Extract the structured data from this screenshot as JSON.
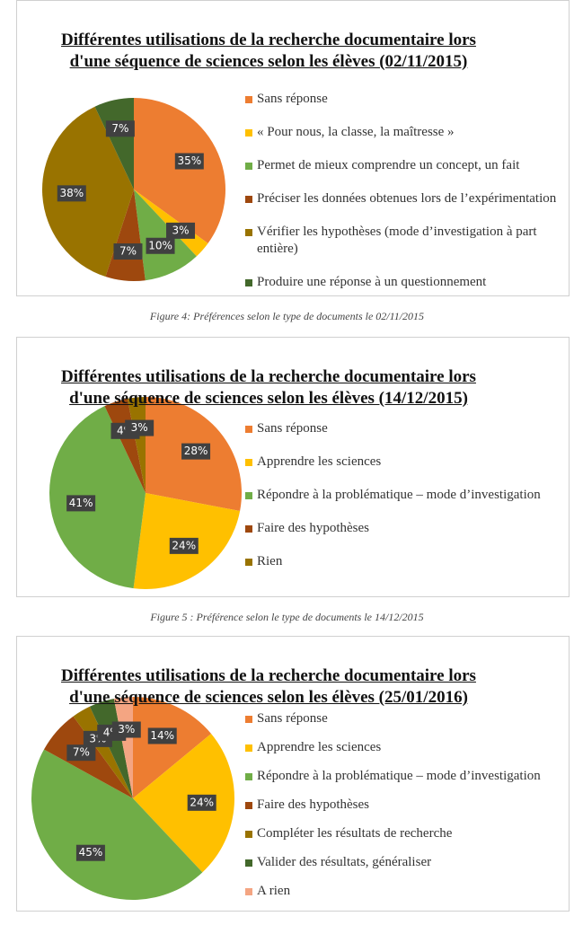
{
  "chart_data": [
    {
      "type": "pie",
      "title": "Différentes utilisations de la recherche documentaire lors d'une séquence de sciences selon les élèves (02/11/2015)",
      "categories": [
        "Sans réponse",
        "« Pour nous, la classe, la maîtresse »",
        "Permet de mieux comprendre un concept, un fait",
        "Préciser les données obtenues lors de l’expérimentation",
        "Vérifier les hypothèses (mode d’investigation à part entière)",
        "Produire une réponse à un questionnement"
      ],
      "values": [
        35,
        3,
        10,
        7,
        38,
        7
      ],
      "value_labels": [
        "35%",
        "3%",
        "10%",
        "7%",
        "38%",
        "7%"
      ],
      "colors": [
        "#ED7D31",
        "#FFC000",
        "#70AD47",
        "#9E480E",
        "#997300",
        "#43682B"
      ]
    },
    {
      "type": "pie",
      "title": "Différentes utilisations de la recherche documentaire lors d'une séquence de sciences selon les élèves (14/12/2015)",
      "categories": [
        "Sans réponse",
        "Apprendre les sciences",
        "Répondre à la problématique – mode d’investigation",
        "Faire des hypothèses",
        "Rien"
      ],
      "values": [
        28,
        24,
        41,
        4,
        3
      ],
      "value_labels": [
        "28%",
        "24%",
        "41%",
        "4%",
        "3%"
      ],
      "colors": [
        "#ED7D31",
        "#FFC000",
        "#70AD47",
        "#9E480E",
        "#997300"
      ]
    },
    {
      "type": "pie",
      "title": "Différentes utilisations de la recherche documentaire lors d'une séquence de sciences selon les élèves (25/01/2016)",
      "categories": [
        "Sans réponse",
        "Apprendre les sciences",
        "Répondre à la problématique – mode d’investigation",
        "Faire des hypothèses",
        "Compléter les résultats de recherche",
        "Valider des résultats, généraliser",
        "A rien"
      ],
      "values": [
        14,
        24,
        45,
        7,
        3,
        4,
        3
      ],
      "value_labels": [
        "14%",
        "24%",
        "45%",
        "7%",
        "3%",
        "4%",
        "3%"
      ],
      "colors": [
        "#ED7D31",
        "#FFC000",
        "#70AD47",
        "#9E480E",
        "#997300",
        "#43682B",
        "#F4A582"
      ]
    }
  ],
  "captions": [
    "Figure 4: Préférences selon le type de documents le 02/11/2015",
    "Figure 5 : Préférence selon le type de documents le 14/12/2015"
  ]
}
